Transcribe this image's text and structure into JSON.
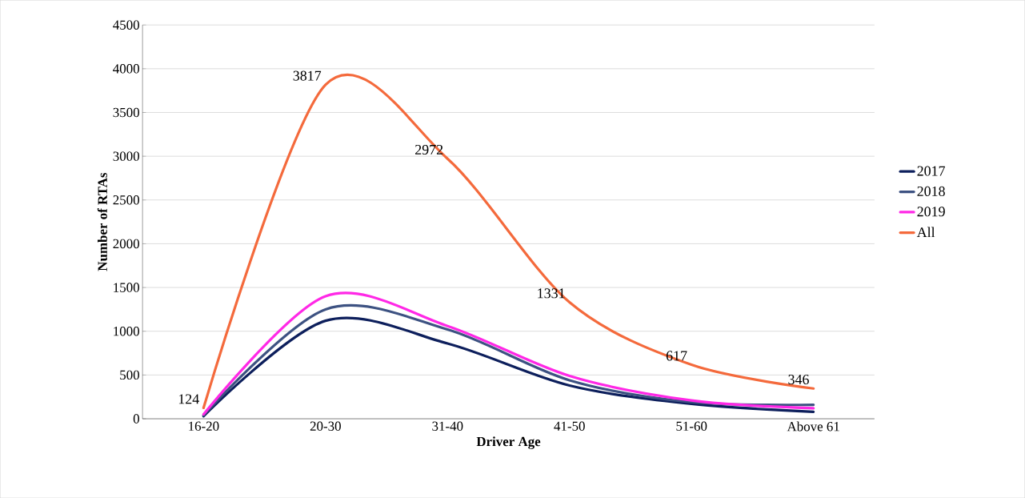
{
  "chart_data": {
    "type": "line",
    "xlabel": "Driver Age",
    "ylabel": "Number of RTAs",
    "categories": [
      "16-20",
      "20-30",
      "31-40",
      "41-50",
      "51-60",
      "Above 61"
    ],
    "series": [
      {
        "name": "2017",
        "color": "#0d1f5c",
        "values": [
          30,
          1120,
          860,
          380,
          170,
          80
        ]
      },
      {
        "name": "2018",
        "color": "#3d5282",
        "values": [
          40,
          1250,
          1020,
          440,
          190,
          160
        ]
      },
      {
        "name": "2019",
        "color": "#ff28e6",
        "values": [
          50,
          1400,
          1060,
          490,
          210,
          120
        ]
      },
      {
        "name": "All",
        "color": "#f46a3c",
        "values": [
          124,
          3817,
          2972,
          1331,
          617,
          346
        ],
        "value_labels": [
          "124",
          "3817",
          "2972",
          "1331",
          "617",
          "346"
        ]
      }
    ],
    "ylim": [
      0,
      4500
    ],
    "yticks": [
      0,
      500,
      1000,
      1500,
      2000,
      2500,
      3000,
      3500,
      4000,
      4500
    ],
    "grid": "y",
    "legend": "right",
    "marker": "none",
    "line_style": "solid"
  }
}
